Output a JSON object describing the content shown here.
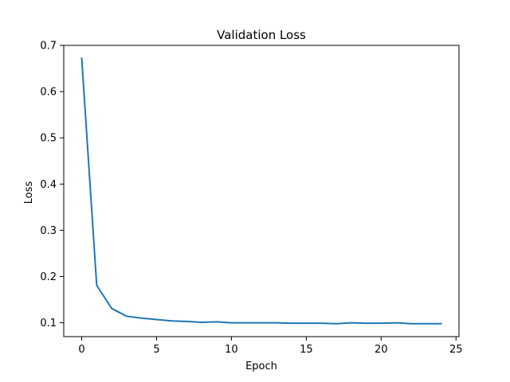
{
  "chart_data": {
    "type": "line",
    "title": "Validation Loss",
    "xlabel": "Epoch",
    "ylabel": "Loss",
    "xlim": [
      -1.2,
      25.2
    ],
    "ylim": [
      0.07,
      0.7
    ],
    "x_ticks": [
      0,
      5,
      10,
      15,
      20,
      25
    ],
    "y_ticks": [
      0.1,
      0.2,
      0.3,
      0.4,
      0.5,
      0.6,
      0.7
    ],
    "x_tick_labels": [
      "0",
      "5",
      "10",
      "15",
      "20",
      "25"
    ],
    "y_tick_labels": [
      "0.1",
      "0.2",
      "0.3",
      "0.4",
      "0.5",
      "0.6",
      "0.7"
    ],
    "grid": false,
    "series": [
      {
        "name": "Validation Loss",
        "color": "#1f77b4",
        "x": [
          0,
          1,
          2,
          3,
          4,
          5,
          6,
          7,
          8,
          9,
          10,
          11,
          12,
          13,
          14,
          15,
          16,
          17,
          18,
          19,
          20,
          21,
          22,
          23,
          24
        ],
        "y": [
          0.672,
          0.181,
          0.131,
          0.114,
          0.11,
          0.107,
          0.104,
          0.103,
          0.101,
          0.102,
          0.1,
          0.1,
          0.1,
          0.1,
          0.099,
          0.099,
          0.099,
          0.098,
          0.1,
          0.099,
          0.099,
          0.1,
          0.098,
          0.098,
          0.098
        ]
      }
    ]
  }
}
